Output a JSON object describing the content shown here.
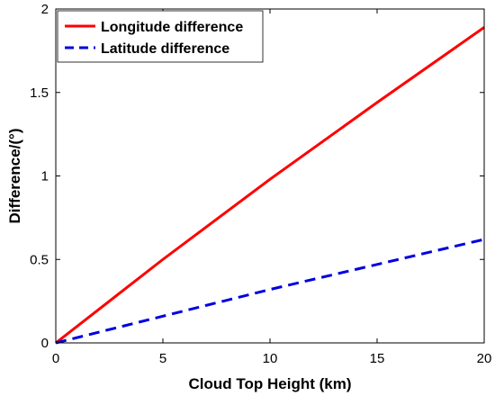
{
  "chart_data": {
    "type": "line",
    "xlabel": "Cloud Top Height (km)",
    "ylabel": "Difference/(°)",
    "xlim": [
      0,
      20
    ],
    "ylim": [
      0,
      2
    ],
    "xticks": [
      0,
      5,
      10,
      15,
      20
    ],
    "yticks": [
      0,
      0.5,
      1,
      1.5,
      2
    ],
    "xtick_labels": [
      "0",
      "5",
      "10",
      "15",
      "20"
    ],
    "ytick_labels": [
      "0",
      "0.5",
      "1",
      "1.5",
      "2"
    ],
    "grid": false,
    "legend_position": "top-left",
    "series": [
      {
        "name": "Longitude difference",
        "color": "#ff0000",
        "style": "solid",
        "x": [
          0,
          5,
          10,
          15,
          20
        ],
        "y": [
          0,
          0.5,
          0.98,
          1.44,
          1.89
        ]
      },
      {
        "name": "Latitude difference",
        "color": "#0000e0",
        "style": "dashed",
        "x": [
          0,
          5,
          10,
          15,
          20
        ],
        "y": [
          0,
          0.16,
          0.32,
          0.47,
          0.62
        ]
      }
    ]
  }
}
